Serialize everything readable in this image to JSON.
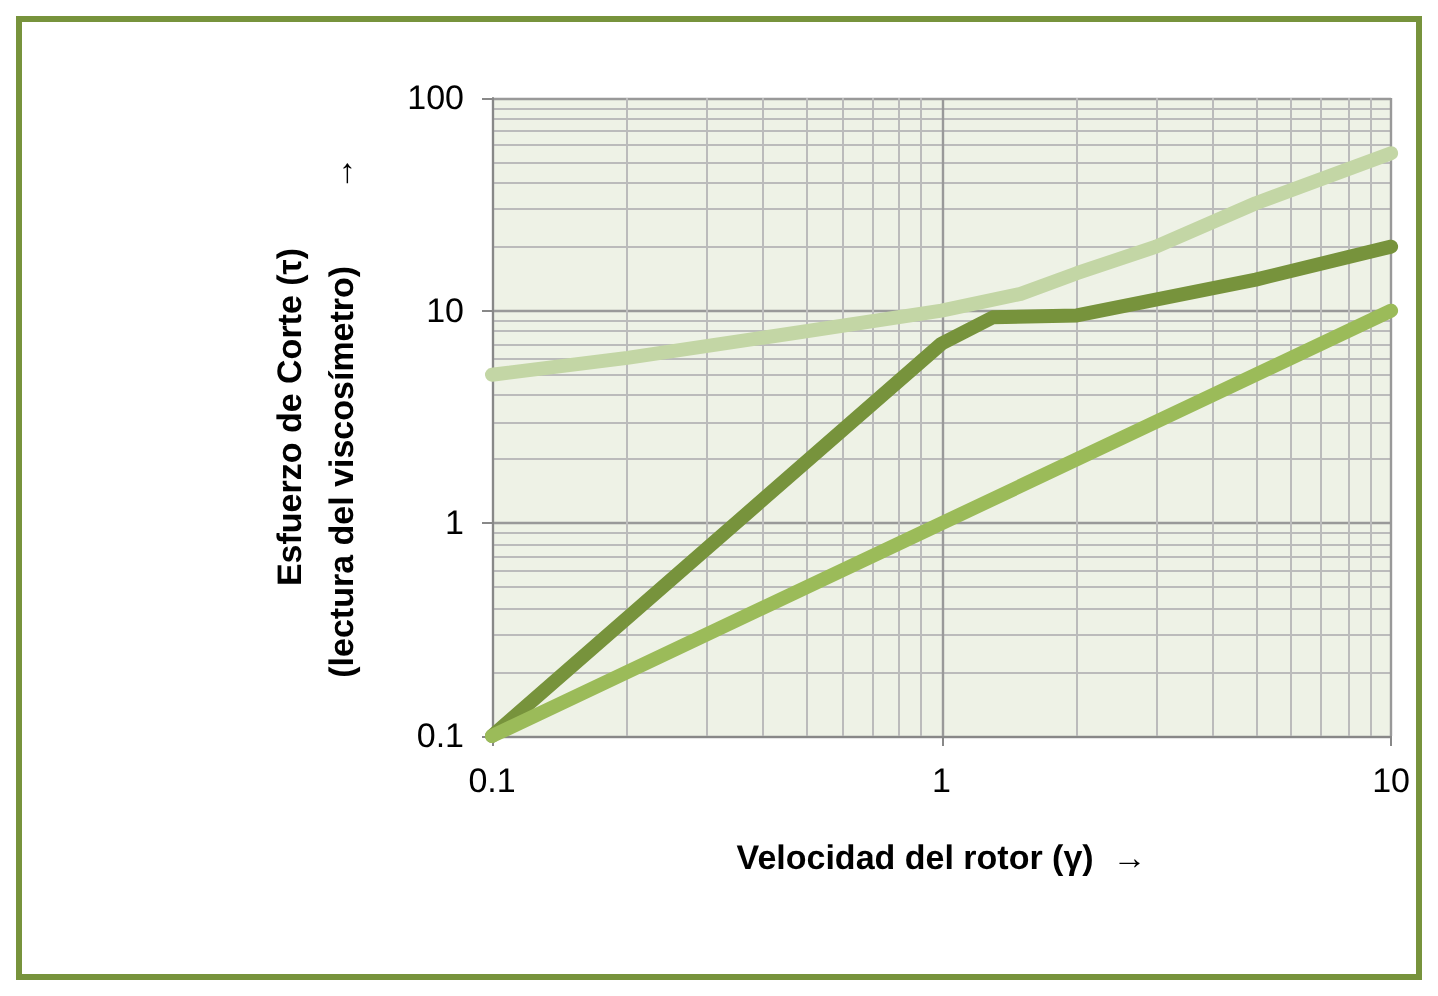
{
  "chart_data": {
    "type": "line",
    "xlabel": "Velocidad del rotor (γ)  →",
    "ylabel": "Esfuerzo de Corte (τ)\n(lectura del viscosímetro)        →",
    "log": "xy",
    "grid": true,
    "marker": "none",
    "line_style": "solid",
    "xlim": [
      0.1,
      10
    ],
    "xticks": [
      0.1,
      1,
      10
    ],
    "ylim": [
      0.1,
      100
    ],
    "yticks": [
      0.1,
      1,
      10,
      100
    ],
    "series": [
      {
        "color": "#c3d6a5",
        "x": [
          0.1,
          0.2,
          0.5,
          1,
          1.5,
          2,
          3,
          5,
          10
        ],
        "values": [
          5,
          6,
          8,
          10,
          12,
          15,
          20,
          32,
          55
        ]
      },
      {
        "color": "#77933c",
        "x": [
          0.1,
          1,
          1.3,
          2,
          5,
          10
        ],
        "values": [
          0.1,
          7,
          9.3,
          9.5,
          14,
          20
        ]
      },
      {
        "color": "#9bbb59",
        "x": [
          0.1,
          10
        ],
        "values": [
          0.1,
          10
        ]
      }
    ]
  }
}
